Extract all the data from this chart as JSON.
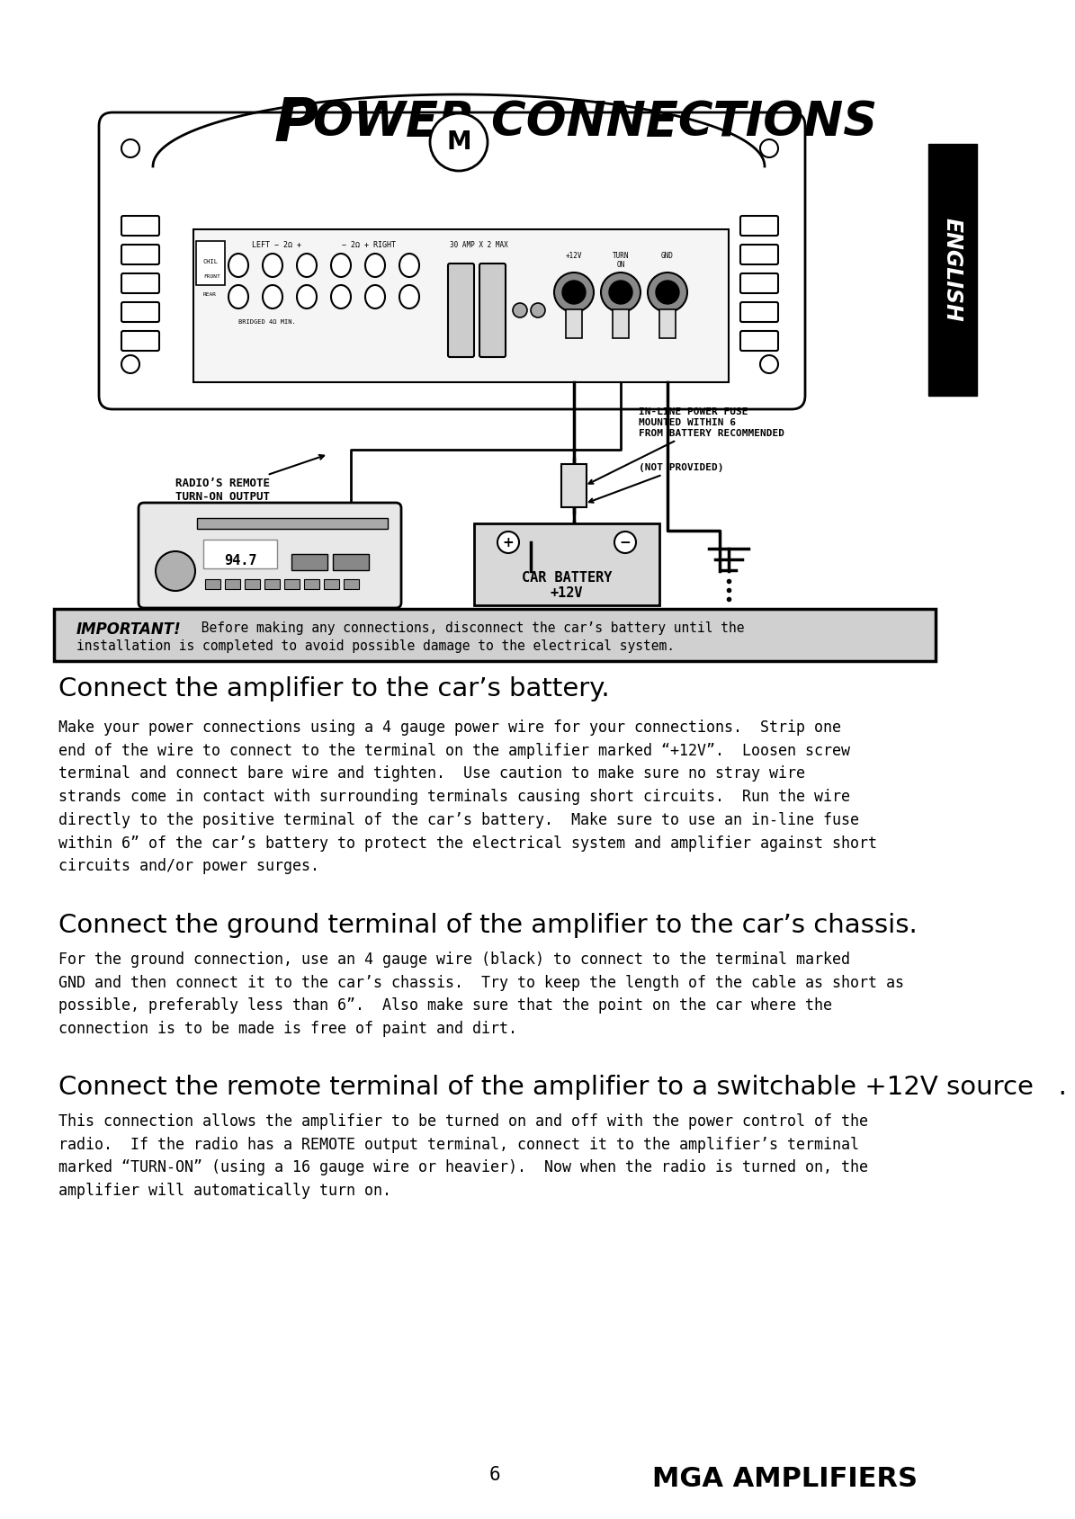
{
  "title_first": "P",
  "title_rest": "OWER CONNECTIONS",
  "bg_color": "#ffffff",
  "section1_heading": "Connect the amplifier to the car’s battery.",
  "section1_body": "Make your power connections using a 4 gauge power wire for your connections.  Strip one\nend of the wire to connect to the terminal on the amplifier marked “+12V”.  Loosen screw\nterminal and connect bare wire and tighten.  Use caution to make sure no stray wire\nstrands come in contact with surrounding terminals causing short circuits.  Run the wire\ndirectly to the positive terminal of the car’s battery.  Make sure to use an in-line fuse\nwithin 6” of the car’s battery to protect the electrical system and amplifier against short\ncircuits and/or power surges.",
  "section2_heading": "Connect the ground terminal of the amplifier to the car’s chassis.",
  "section2_body": "For the ground connection, use an 4 gauge wire (black) to connect to the terminal marked\nGND and then connect it to the car’s chassis.  Try to keep the length of the cable as short as\npossible, preferably less than 6”.  Also make sure that the point on the car where the\nconnection is to be made is free of paint and dirt.",
  "section3_heading": "Connect the remote terminal of the amplifier to a switchable +12V source   .",
  "section3_body": "This connection allows the amplifier to be turned on and off with the power control of the\nradio.  If the radio has a REMOTE output terminal, connect it to the amplifier’s terminal\nmarked “TURN-ON” (using a 16 gauge wire or heavier).  Now when the radio is turned on, the\namplifier will automatically turn on.",
  "important_label": "IMPORTANT!",
  "radio_label": "RADIO’S REMOTE\nTURN-ON OUTPUT",
  "battery_label": "CAR BATTERY\n+12V",
  "inline_fuse_label": "IN-LINE POWER FUSE\nMOUNTED WITHIN 6\nFROM BATTERY RECOMMENDED",
  "not_provided_label": "(NOT PROVIDED)",
  "page_number": "6",
  "brand": "MGA AMPLIFIERS",
  "english_label": "ENGLISH"
}
